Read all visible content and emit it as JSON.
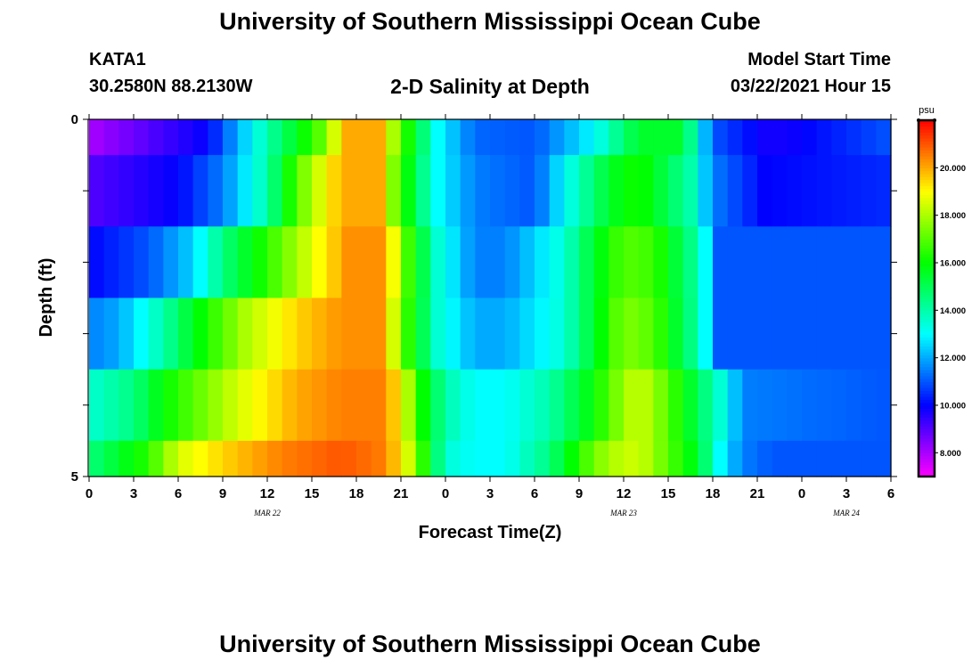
{
  "header": {
    "title": "University of Southern Mississippi Ocean Cube",
    "station_id": "KATA1",
    "station_coords": "30.2580N 88.2130W",
    "model_start_label": "Model Start Time",
    "model_start_value": "03/22/2021 Hour 15"
  },
  "footer": {
    "title": "University of Southern Mississippi Ocean Cube"
  },
  "chart_data": {
    "type": "heatmap",
    "title": "2-D Salinity at Depth",
    "xlabel": "Forecast Time(Z)",
    "ylabel": "Depth (ft)",
    "x_tick_labels": [
      "0",
      "3",
      "6",
      "9",
      "12",
      "15",
      "18",
      "21",
      "0",
      "3",
      "6",
      "9",
      "12",
      "15",
      "18",
      "21",
      "0",
      "3",
      "6"
    ],
    "date_labels": [
      {
        "label": "MAR 22",
        "hour": 12
      },
      {
        "label": "MAR 23",
        "hour": 36
      },
      {
        "label": "MAR 24",
        "hour": 51
      }
    ],
    "x_range_hours": [
      0,
      54
    ],
    "y_tick_labels": [
      "0",
      "5"
    ],
    "ylim": [
      0,
      5
    ],
    "colorbar": {
      "unit": "psu",
      "min": 7,
      "max": 22,
      "tick_values": [
        8,
        10,
        12,
        14,
        16,
        18,
        20
      ],
      "tick_labels": [
        "8.000",
        "10.000",
        "12.000",
        "14.000",
        "16.000",
        "18.000",
        "20.000"
      ]
    },
    "layer_depth_ranges": [
      [
        0,
        0.5
      ],
      [
        0.5,
        1.5
      ],
      [
        1.5,
        2.5
      ],
      [
        2.5,
        3.5
      ],
      [
        3.5,
        4.5
      ],
      [
        4.5,
        5
      ]
    ],
    "layers": [
      {
        "hours": [
          0,
          8,
          11.5,
          15.5,
          17.5,
          19.5,
          21,
          23.5,
          26,
          30,
          34,
          37,
          40,
          42,
          45.5,
          47,
          54
        ],
        "values": [
          8,
          10,
          13.5,
          17,
          20,
          20,
          17,
          13,
          11.2,
          11,
          13,
          15.5,
          15.5,
          11,
          9.8,
          9.8,
          11
        ]
      },
      {
        "hours": [
          0,
          6,
          9,
          12,
          14,
          17,
          19.5,
          20.5,
          22,
          23.5,
          26,
          30,
          32,
          35,
          37,
          40.5,
          42,
          45.5,
          54
        ],
        "values": [
          9,
          10,
          11.5,
          14,
          17,
          20,
          20,
          17.5,
          15,
          13,
          11.5,
          11,
          13,
          15.5,
          16.3,
          14,
          11.5,
          10,
          10.5
        ]
      },
      {
        "hours": [
          0,
          4,
          7,
          9,
          12,
          15.5,
          17.5,
          20,
          21,
          23.5,
          26,
          28,
          32,
          34,
          36,
          38,
          41,
          42.5,
          54
        ],
        "values": [
          10,
          11,
          12.5,
          14.5,
          16.5,
          19,
          20.3,
          20.3,
          17.5,
          13.5,
          11.5,
          11.5,
          13.5,
          15.5,
          17,
          16.7,
          14,
          11,
          11
        ]
      },
      {
        "hours": [
          0,
          2,
          5,
          7.5,
          10.5,
          14,
          17,
          19.5,
          20.5,
          21.5,
          23.5,
          26,
          28,
          32,
          34,
          36,
          38,
          41,
          42.5,
          54
        ],
        "values": [
          11.5,
          12,
          14,
          16,
          18,
          19.5,
          20.3,
          20.3,
          18.5,
          16.5,
          13.5,
          12,
          12,
          13.5,
          15.5,
          17.5,
          17,
          14,
          11,
          11
        ]
      },
      {
        "hours": [
          0,
          3,
          5,
          7,
          10,
          14,
          17,
          20,
          21.5,
          22.5,
          24,
          26,
          28,
          31,
          34,
          35,
          37,
          39,
          41,
          43,
          44,
          54
        ],
        "values": [
          13.5,
          14.5,
          16,
          17,
          18.5,
          20,
          20.5,
          20.5,
          18,
          16,
          14,
          13,
          13,
          14,
          16,
          17,
          18.5,
          17,
          15,
          13,
          11.5,
          11
        ]
      },
      {
        "hours": [
          0,
          2,
          4,
          6,
          9,
          13,
          17,
          20,
          21.5,
          22.5,
          24,
          26,
          28,
          31,
          33,
          35,
          37,
          39,
          41,
          42.5,
          44,
          46,
          54
        ],
        "values": [
          14.5,
          15.5,
          16.5,
          18.5,
          19.5,
          20.5,
          21,
          20.5,
          18.5,
          16.5,
          13.5,
          13,
          13,
          14.5,
          16.5,
          18,
          18.5,
          17,
          15.5,
          13,
          11.5,
          11,
          11
        ]
      }
    ]
  }
}
